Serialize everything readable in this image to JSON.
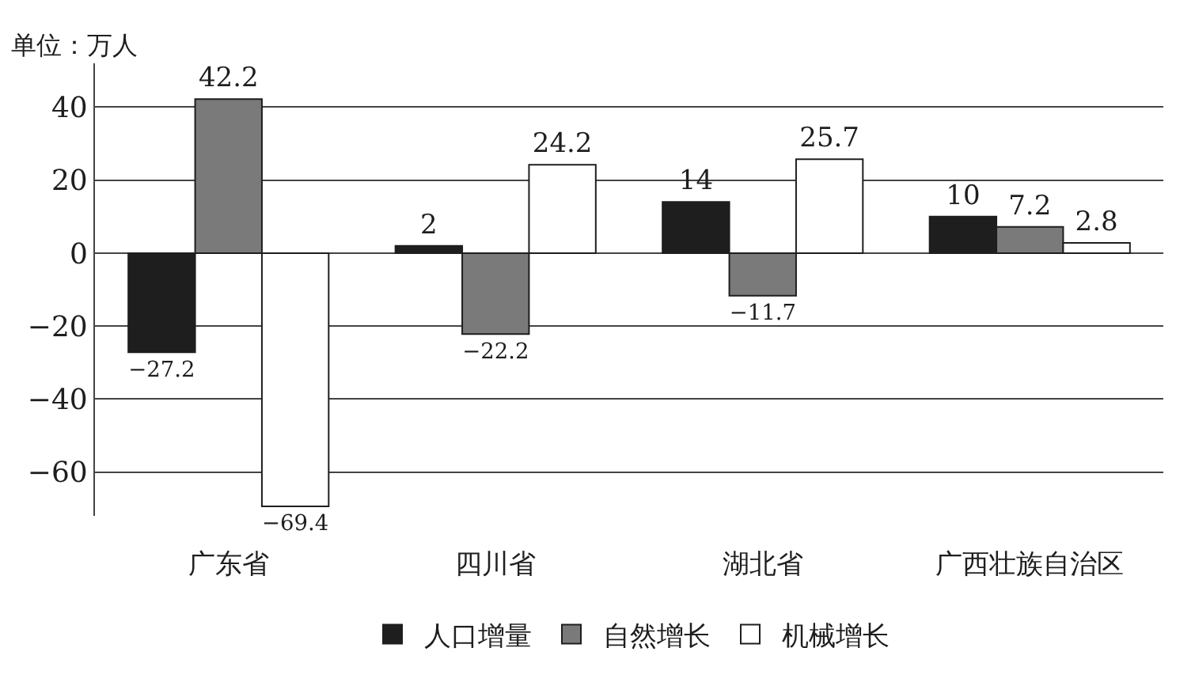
{
  "chart_data": {
    "type": "bar",
    "ylabel": "单位：万人",
    "categories": [
      "广东省",
      "四川省",
      "湖北省",
      "广西壮族自治区"
    ],
    "series": [
      {
        "name": "人口增量",
        "color": "#1e1e1e",
        "values": [
          -27.2,
          2,
          14,
          10
        ]
      },
      {
        "name": "自然增长",
        "color": "#7a7a7a",
        "values": [
          42.2,
          -22.2,
          -11.7,
          7.2
        ]
      },
      {
        "name": "机械增长",
        "color": "#ffffff",
        "values": [
          -69.4,
          24.2,
          25.7,
          2.8
        ]
      }
    ],
    "ylim": [
      -72,
      52
    ],
    "yticks": [
      -60,
      -40,
      -20,
      0,
      20,
      40
    ],
    "grid": "y",
    "legend": "bottom",
    "data_labels": true
  }
}
